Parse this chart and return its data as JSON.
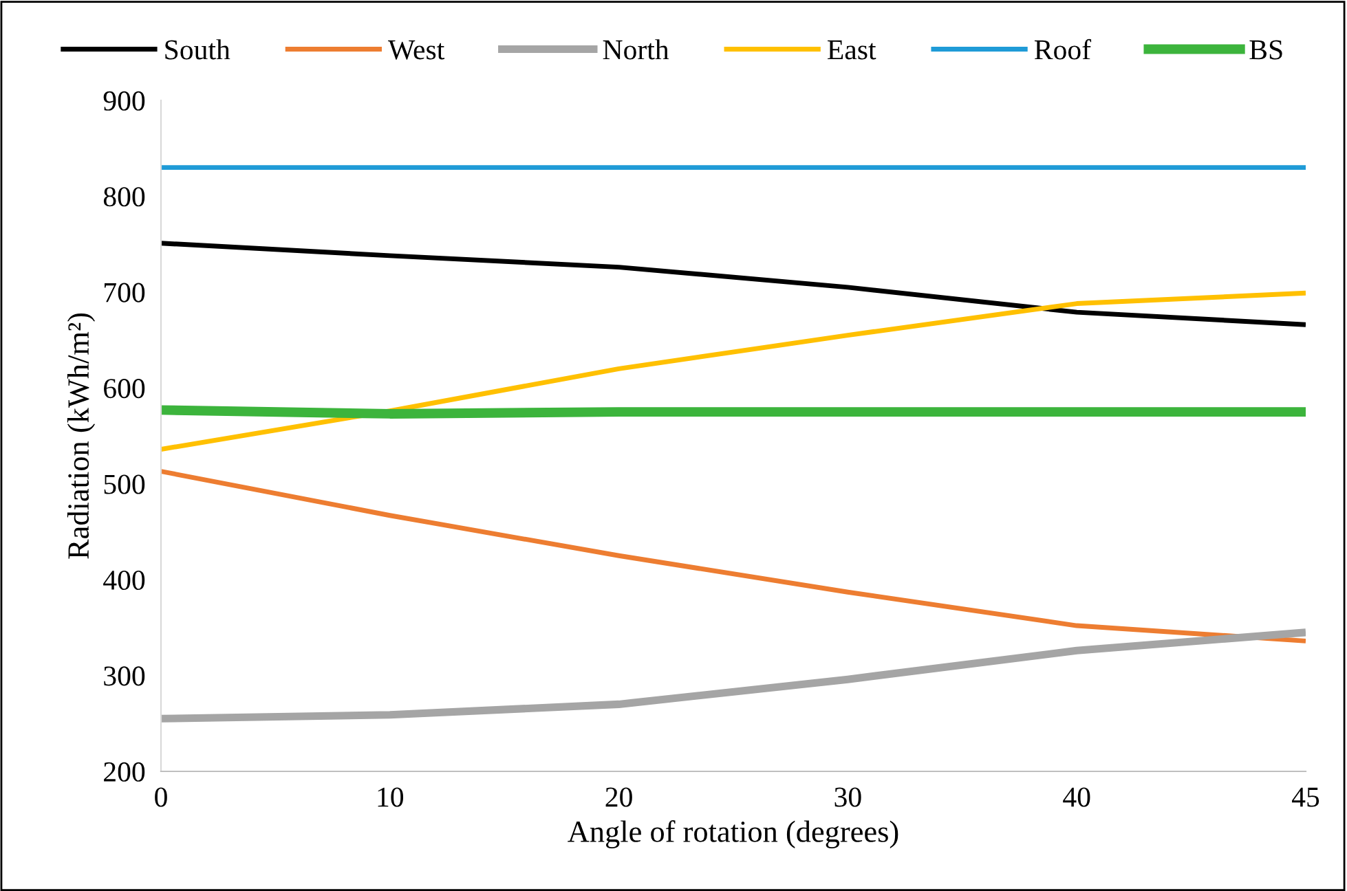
{
  "chart_data": {
    "type": "line",
    "xlabel": "Angle of rotation (degrees)",
    "ylabel": "Radiation (kWh/m²)",
    "categories": [
      "0",
      "10",
      "20",
      "30",
      "40",
      "45"
    ],
    "ylim": [
      200,
      900
    ],
    "yticks": [
      200,
      300,
      400,
      500,
      600,
      700,
      800,
      900
    ],
    "grid": false,
    "legend": "top",
    "marker": "none",
    "line_style": "solid",
    "series": [
      {
        "name": "South",
        "color": "#000000",
        "values": [
          751,
          738,
          726,
          705,
          679,
          666
        ]
      },
      {
        "name": "West",
        "color": "#ed7d31",
        "values": [
          513,
          467,
          425,
          387,
          352,
          336
        ]
      },
      {
        "name": "North",
        "color": "#a5a5a5",
        "values": [
          255,
          259,
          270,
          296,
          326,
          345
        ]
      },
      {
        "name": "East",
        "color": "#ffc000",
        "values": [
          536,
          576,
          620,
          655,
          688,
          699
        ]
      },
      {
        "name": "Roof",
        "color": "#1f9bd7",
        "values": [
          830,
          830,
          830,
          830,
          830,
          830
        ]
      },
      {
        "name": "BS",
        "color": "#3cb43c",
        "values": [
          577,
          573,
          575,
          575,
          575,
          575
        ]
      }
    ]
  }
}
